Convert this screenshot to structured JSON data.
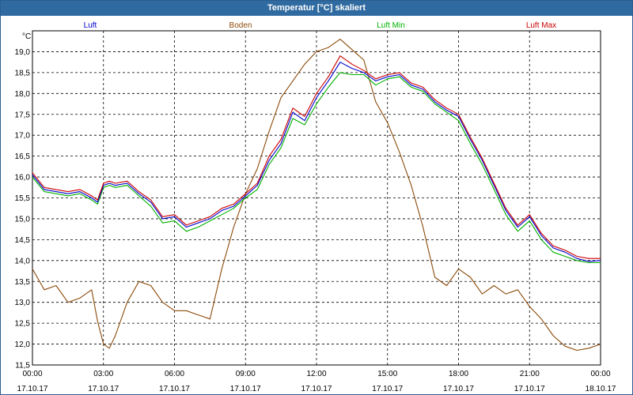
{
  "window": {
    "title": "Temperatur [°C] skaliert"
  },
  "chart_data": {
    "type": "line",
    "title": "Temperatur [°C] skaliert",
    "ylabel": "°C",
    "xlabel": "",
    "ylim": [
      11.5,
      19.5
    ],
    "xlim": [
      0,
      24
    ],
    "grid": true,
    "legend_position": "top",
    "yticks": [
      "19,0",
      "18,5",
      "18,0",
      "17,5",
      "17,0",
      "16,5",
      "16,0",
      "15,5",
      "15,0",
      "14,5",
      "14,0",
      "13,5",
      "13,0",
      "12,5",
      "12,0",
      "11,5"
    ],
    "xticks": [
      {
        "time": "00:00",
        "date": "17.10.17"
      },
      {
        "time": "03:00",
        "date": "17.10.17"
      },
      {
        "time": "06:00",
        "date": "17.10.17"
      },
      {
        "time": "09:00",
        "date": "17.10.17"
      },
      {
        "time": "12:00",
        "date": "17.10.17"
      },
      {
        "time": "15:00",
        "date": "17.10.17"
      },
      {
        "time": "18:00",
        "date": "17.10.17"
      },
      {
        "time": "21:00",
        "date": "17.10.17"
      },
      {
        "time": "00:00",
        "date": "18.10.17"
      }
    ],
    "x_hours": [
      0,
      0.5,
      1,
      1.5,
      2,
      2.5,
      2.75,
      3,
      3.25,
      3.5,
      4,
      4.5,
      5,
      5.5,
      6,
      6.5,
      7,
      7.5,
      8,
      8.5,
      9,
      9.5,
      10,
      10.5,
      11,
      11.5,
      12,
      12.5,
      13,
      13.5,
      14,
      14.5,
      15,
      15.5,
      16,
      16.5,
      17,
      17.5,
      18,
      18.5,
      19,
      19.5,
      20,
      20.5,
      21,
      21.5,
      22,
      22.5,
      23,
      23.5,
      24
    ],
    "series": [
      {
        "name": "Luft",
        "color": "#0000cc",
        "values": [
          16.05,
          15.7,
          15.65,
          15.6,
          15.65,
          15.5,
          15.4,
          15.8,
          15.85,
          15.8,
          15.85,
          15.6,
          15.4,
          15.0,
          15.05,
          14.8,
          14.9,
          15.0,
          15.2,
          15.3,
          15.55,
          15.8,
          16.4,
          16.8,
          17.55,
          17.35,
          17.9,
          18.3,
          18.75,
          18.6,
          18.5,
          18.3,
          18.4,
          18.45,
          18.2,
          18.1,
          17.8,
          17.6,
          17.45,
          16.9,
          16.4,
          15.8,
          15.2,
          14.8,
          15.05,
          14.6,
          14.3,
          14.2,
          14.05,
          13.98,
          14.0
        ]
      },
      {
        "name": "Boden",
        "color": "#8b4a0a",
        "values": [
          13.8,
          13.3,
          13.4,
          13.0,
          13.1,
          13.3,
          12.55,
          12.0,
          11.9,
          12.2,
          13.0,
          13.5,
          13.4,
          13.0,
          12.8,
          12.8,
          12.7,
          12.6,
          13.8,
          14.8,
          15.6,
          16.2,
          17.1,
          17.9,
          18.3,
          18.7,
          19.0,
          19.1,
          19.3,
          19.05,
          18.8,
          17.8,
          17.3,
          16.6,
          15.8,
          14.8,
          13.6,
          13.4,
          13.8,
          13.6,
          13.2,
          13.4,
          13.2,
          13.3,
          12.9,
          12.6,
          12.2,
          11.95,
          11.85,
          11.9,
          12.0
        ]
      },
      {
        "name": "Luft Min",
        "color": "#00b000",
        "values": [
          16.0,
          15.65,
          15.6,
          15.55,
          15.6,
          15.45,
          15.35,
          15.75,
          15.8,
          15.75,
          15.8,
          15.55,
          15.3,
          14.9,
          14.95,
          14.7,
          14.8,
          14.95,
          15.1,
          15.25,
          15.5,
          15.7,
          16.3,
          16.7,
          17.4,
          17.25,
          17.75,
          18.15,
          18.5,
          18.45,
          18.45,
          18.2,
          18.35,
          18.4,
          18.15,
          18.05,
          17.75,
          17.55,
          17.35,
          16.8,
          16.3,
          15.7,
          15.1,
          14.7,
          14.95,
          14.5,
          14.2,
          14.1,
          14.0,
          13.95,
          13.95
        ]
      },
      {
        "name": "Luft Max",
        "color": "#cc0000",
        "values": [
          16.1,
          15.75,
          15.7,
          15.65,
          15.7,
          15.55,
          15.45,
          15.85,
          15.9,
          15.85,
          15.9,
          15.65,
          15.45,
          15.05,
          15.1,
          14.85,
          14.95,
          15.05,
          15.25,
          15.35,
          15.6,
          15.85,
          16.5,
          16.9,
          17.65,
          17.45,
          18.0,
          18.4,
          18.9,
          18.7,
          18.55,
          18.35,
          18.45,
          18.5,
          18.25,
          18.15,
          17.85,
          17.65,
          17.5,
          16.95,
          16.45,
          15.85,
          15.25,
          14.85,
          15.1,
          14.65,
          14.35,
          14.25,
          14.1,
          14.05,
          14.05
        ]
      }
    ]
  }
}
